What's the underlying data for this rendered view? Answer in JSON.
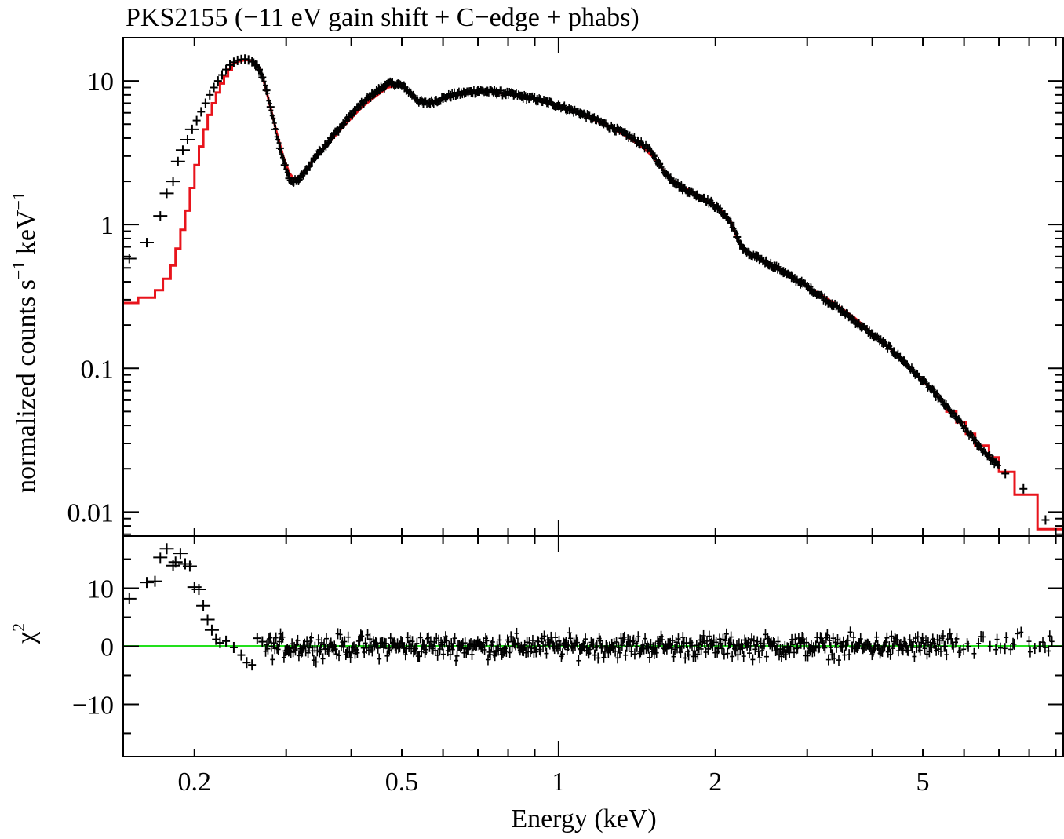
{
  "chart_data": [
    {
      "type": "line",
      "panel": "top",
      "title": "PKS2155 (−11 eV gain shift + C−edge + phabs)",
      "ylabel_main": "normalized counts s",
      "ylabel_exp1": "−1",
      "ylabel_mid": " keV",
      "ylabel_exp2": "−1",
      "x_scale": "log",
      "y_scale": "log",
      "xlim": [
        0.146,
        9.3
      ],
      "ylim": [
        0.0068,
        20
      ],
      "y_ticks": [
        {
          "value": 10,
          "label": "10"
        },
        {
          "value": 1,
          "label": "1"
        },
        {
          "value": 0.1,
          "label": "0.1"
        },
        {
          "value": 0.01,
          "label": "0.01"
        }
      ],
      "model_color": "#e8141c",
      "data_color": "#000000",
      "series": [
        {
          "name": "data",
          "points": [
            [
              0.15,
              0.58
            ],
            [
              0.162,
              0.75
            ],
            [
              0.172,
              1.15
            ],
            [
              0.177,
              1.65
            ],
            [
              0.182,
              2.0
            ],
            [
              0.186,
              2.75
            ],
            [
              0.19,
              3.3
            ],
            [
              0.194,
              3.9
            ],
            [
              0.198,
              4.6
            ],
            [
              0.202,
              5.3
            ],
            [
              0.206,
              6.1
            ],
            [
              0.21,
              7.0
            ],
            [
              0.214,
              8.0
            ],
            [
              0.218,
              9.0
            ],
            [
              0.222,
              10.0
            ],
            [
              0.226,
              11.0
            ],
            [
              0.23,
              12.0
            ],
            [
              0.234,
              12.9
            ],
            [
              0.238,
              13.5
            ],
            [
              0.242,
              13.9
            ],
            [
              0.246,
              14.1
            ],
            [
              0.25,
              14.2
            ],
            [
              0.254,
              14.0
            ],
            [
              0.258,
              13.6
            ],
            [
              0.262,
              13.0
            ],
            [
              0.266,
              12.0
            ],
            [
              0.27,
              10.6
            ],
            [
              0.275,
              8.6
            ],
            [
              0.28,
              6.6
            ],
            [
              0.286,
              4.6
            ],
            [
              0.292,
              3.4
            ],
            [
              0.298,
              2.6
            ],
            [
              0.304,
              2.1
            ],
            [
              0.31,
              1.98
            ],
            [
              0.317,
              2.05
            ],
            [
              0.324,
              2.25
            ],
            [
              0.332,
              2.55
            ],
            [
              0.34,
              2.9
            ],
            [
              0.348,
              3.25
            ],
            [
              0.357,
              3.6
            ],
            [
              0.366,
              4.0
            ],
            [
              0.376,
              4.5
            ],
            [
              0.386,
              5.0
            ],
            [
              0.396,
              5.6
            ],
            [
              0.406,
              6.2
            ],
            [
              0.417,
              6.8
            ],
            [
              0.428,
              7.4
            ],
            [
              0.44,
              8.1
            ],
            [
              0.452,
              8.7
            ],
            [
              0.465,
              9.3
            ],
            [
              0.478,
              9.6
            ],
            [
              0.492,
              9.5
            ],
            [
              0.506,
              9.0
            ],
            [
              0.52,
              8.2
            ],
            [
              0.535,
              7.4
            ],
            [
              0.55,
              7.0
            ],
            [
              0.566,
              7.05
            ],
            [
              0.582,
              7.3
            ],
            [
              0.6,
              7.6
            ],
            [
              0.62,
              7.9
            ],
            [
              0.64,
              8.1
            ],
            [
              0.66,
              8.25
            ],
            [
              0.68,
              8.4
            ],
            [
              0.7,
              8.5
            ],
            [
              0.73,
              8.45
            ],
            [
              0.76,
              8.35
            ],
            [
              0.79,
              8.2
            ],
            [
              0.82,
              8.0
            ],
            [
              0.85,
              7.8
            ],
            [
              0.88,
              7.6
            ],
            [
              0.91,
              7.4
            ],
            [
              0.95,
              7.1
            ],
            [
              1.0,
              6.75
            ],
            [
              1.05,
              6.35
            ],
            [
              1.1,
              5.95
            ],
            [
              1.16,
              5.5
            ],
            [
              1.22,
              5.05
            ],
            [
              1.28,
              4.65
            ],
            [
              1.35,
              4.2
            ],
            [
              1.42,
              3.8
            ],
            [
              1.48,
              3.4
            ],
            [
              1.52,
              3.05
            ],
            [
              1.56,
              2.65
            ],
            [
              1.6,
              2.3
            ],
            [
              1.64,
              2.1
            ],
            [
              1.68,
              1.95
            ],
            [
              1.72,
              1.82
            ],
            [
              1.78,
              1.7
            ],
            [
              1.84,
              1.6
            ],
            [
              1.9,
              1.52
            ],
            [
              1.96,
              1.42
            ],
            [
              2.02,
              1.3
            ],
            [
              2.08,
              1.18
            ],
            [
              2.14,
              1.03
            ],
            [
              2.2,
              0.82
            ],
            [
              2.26,
              0.68
            ],
            [
              2.32,
              0.62
            ],
            [
              2.4,
              0.59
            ],
            [
              2.5,
              0.55
            ],
            [
              2.6,
              0.51
            ],
            [
              2.7,
              0.47
            ],
            [
              2.8,
              0.43
            ],
            [
              2.92,
              0.395
            ],
            [
              3.05,
              0.355
            ],
            [
              3.2,
              0.315
            ],
            [
              3.35,
              0.28
            ],
            [
              3.5,
              0.25
            ],
            [
              3.66,
              0.22
            ],
            [
              3.82,
              0.195
            ],
            [
              4.0,
              0.172
            ],
            [
              4.2,
              0.15
            ],
            [
              4.4,
              0.13
            ],
            [
              4.6,
              0.112
            ],
            [
              4.8,
              0.095
            ],
            [
              5.0,
              0.082
            ],
            [
              5.25,
              0.068
            ],
            [
              5.5,
              0.056
            ],
            [
              5.8,
              0.045
            ],
            [
              6.1,
              0.036
            ],
            [
              6.4,
              0.029
            ],
            [
              6.8,
              0.023
            ],
            [
              7.2,
              0.0185
            ],
            [
              7.8,
              0.0145
            ],
            [
              8.6,
              0.0088
            ]
          ]
        },
        {
          "name": "model",
          "points": [
            [
              0.146,
              0.285
            ],
            [
              0.156,
              0.285
            ],
            [
              0.156,
              0.31
            ],
            [
              0.168,
              0.31
            ],
            [
              0.168,
              0.35
            ],
            [
              0.174,
              0.35
            ],
            [
              0.174,
              0.42
            ],
            [
              0.18,
              0.42
            ],
            [
              0.18,
              0.52
            ],
            [
              0.184,
              0.52
            ],
            [
              0.184,
              0.68
            ],
            [
              0.188,
              0.68
            ],
            [
              0.188,
              0.92
            ],
            [
              0.192,
              0.92
            ],
            [
              0.192,
              1.25
            ],
            [
              0.196,
              1.25
            ],
            [
              0.196,
              1.8
            ],
            [
              0.2,
              1.8
            ],
            [
              0.2,
              2.6
            ],
            [
              0.204,
              2.6
            ],
            [
              0.204,
              3.5
            ],
            [
              0.208,
              3.5
            ],
            [
              0.208,
              4.6
            ],
            [
              0.212,
              4.6
            ],
            [
              0.212,
              5.8
            ],
            [
              0.216,
              5.8
            ],
            [
              0.216,
              7.0
            ],
            [
              0.22,
              7.0
            ],
            [
              0.22,
              8.3
            ],
            [
              0.224,
              8.3
            ],
            [
              0.224,
              9.6
            ],
            [
              0.228,
              9.6
            ],
            [
              0.228,
              10.8
            ],
            [
              0.232,
              10.8
            ],
            [
              0.232,
              12.0
            ],
            [
              0.236,
              12.0
            ],
            [
              0.236,
              13.0
            ],
            [
              0.242,
              13.6
            ],
            [
              0.25,
              14.0
            ],
            [
              0.256,
              13.9
            ],
            [
              0.262,
              13.3
            ],
            [
              0.268,
              11.8
            ],
            [
              0.274,
              9.0
            ],
            [
              0.28,
              6.5
            ],
            [
              0.288,
              4.3
            ],
            [
              0.296,
              3.0
            ],
            [
              0.304,
              2.3
            ],
            [
              0.31,
              2.1
            ],
            [
              0.318,
              2.15
            ],
            [
              0.33,
              2.5
            ],
            [
              0.345,
              3.05
            ],
            [
              0.36,
              3.6
            ],
            [
              0.38,
              4.5
            ],
            [
              0.4,
              5.5
            ],
            [
              0.42,
              6.6
            ],
            [
              0.445,
              7.8
            ],
            [
              0.47,
              9.0
            ],
            [
              0.49,
              9.3
            ],
            [
              0.505,
              9.1
            ],
            [
              0.52,
              8.2
            ],
            [
              0.54,
              7.2
            ],
            [
              0.56,
              7.0
            ],
            [
              0.59,
              7.3
            ],
            [
              0.63,
              7.9
            ],
            [
              0.68,
              8.35
            ],
            [
              0.73,
              8.4
            ],
            [
              0.8,
              8.1
            ],
            [
              0.88,
              7.55
            ],
            [
              0.96,
              7.0
            ],
            [
              1.05,
              6.3
            ],
            [
              1.15,
              5.5
            ],
            [
              1.25,
              4.8
            ],
            [
              1.35,
              4.1
            ],
            [
              1.45,
              3.45
            ],
            [
              1.52,
              2.95
            ],
            [
              1.58,
              2.45
            ],
            [
              1.64,
              2.1
            ],
            [
              1.72,
              1.85
            ],
            [
              1.8,
              1.7
            ],
            [
              1.9,
              1.52
            ],
            [
              2.0,
              1.35
            ],
            [
              2.08,
              1.2
            ],
            [
              2.14,
              1.05
            ],
            [
              2.2,
              0.8
            ],
            [
              2.26,
              0.67
            ],
            [
              2.35,
              0.61
            ],
            [
              2.5,
              0.55
            ],
            [
              2.7,
              0.47
            ],
            [
              2.9,
              0.4
            ],
            [
              3.1,
              0.345
            ],
            [
              3.4,
              0.28
            ],
            [
              3.7,
              0.225
            ],
            [
              4.0,
              0.175
            ],
            [
              4.3,
              0.14
            ],
            [
              4.6,
              0.112
            ],
            [
              4.95,
              0.085
            ],
            [
              5.3,
              0.066
            ],
            [
              5.55,
              0.055
            ],
            [
              5.55,
              0.05
            ],
            [
              5.8,
              0.05
            ],
            [
              5.8,
              0.042
            ],
            [
              6.05,
              0.042
            ],
            [
              6.05,
              0.035
            ],
            [
              6.3,
              0.035
            ],
            [
              6.3,
              0.029
            ],
            [
              6.7,
              0.029
            ],
            [
              6.7,
              0.024
            ],
            [
              7.0,
              0.024
            ],
            [
              7.0,
              0.019
            ],
            [
              7.5,
              0.019
            ],
            [
              7.5,
              0.0132
            ],
            [
              8.3,
              0.0132
            ],
            [
              8.3,
              0.0076
            ],
            [
              9.3,
              0.0076
            ]
          ]
        }
      ]
    },
    {
      "type": "scatter",
      "panel": "bottom",
      "ylabel": "χ",
      "ylabel_exp": "2",
      "xlabel": "Energy (keV)",
      "x_scale": "log",
      "xlim": [
        0.146,
        9.3
      ],
      "ylim": [
        -19,
        19
      ],
      "y_ticks": [
        {
          "value": 10,
          "label": "10"
        },
        {
          "value": 0,
          "label": "0"
        },
        {
          "value": -10,
          "label": "−10"
        }
      ],
      "x_ticks": [
        {
          "value": 0.2,
          "label": "0.2"
        },
        {
          "value": 0.5,
          "label": "0.5"
        },
        {
          "value": 1,
          "label": "1"
        },
        {
          "value": 2,
          "label": "2"
        },
        {
          "value": 5,
          "label": "5"
        }
      ],
      "zero_line_color": "#22e01c",
      "series": [
        {
          "name": "residuals",
          "points": [
            [
              0.15,
              8.2
            ],
            [
              0.162,
              11.0
            ],
            [
              0.168,
              11.2
            ],
            [
              0.172,
              15.3
            ],
            [
              0.177,
              16.8
            ],
            [
              0.182,
              13.9
            ],
            [
              0.184,
              14.5
            ],
            [
              0.188,
              16.0
            ],
            [
              0.192,
              14.2
            ],
            [
              0.196,
              13.8
            ],
            [
              0.2,
              10.2
            ],
            [
              0.204,
              9.8
            ],
            [
              0.208,
              7.0
            ],
            [
              0.212,
              4.6
            ],
            [
              0.216,
              2.8
            ],
            [
              0.22,
              1.2
            ],
            [
              0.224,
              0.6
            ],
            [
              0.23,
              0.9
            ],
            [
              0.238,
              -0.2
            ],
            [
              0.246,
              -1.5
            ],
            [
              0.252,
              -2.8
            ],
            [
              0.258,
              -3.2
            ],
            [
              0.264,
              1.4
            ],
            [
              0.27,
              0.8
            ]
          ],
          "noise": {
            "x_start": 0.274,
            "x_end": 8.9,
            "amplitude": 1.9
          }
        }
      ]
    }
  ]
}
